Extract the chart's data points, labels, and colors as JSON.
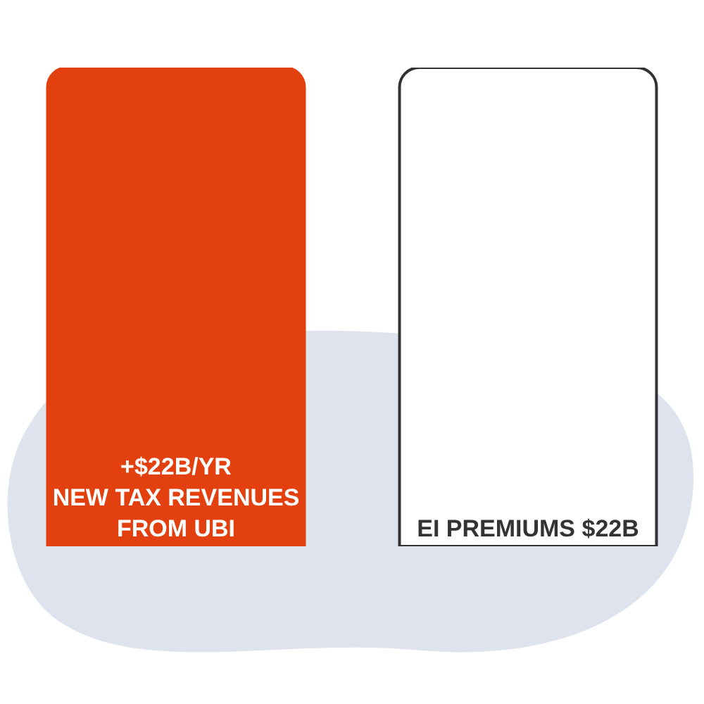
{
  "chart_data": {
    "type": "bar",
    "categories": [
      null,
      null
    ],
    "values": [
      22,
      22
    ],
    "colors": [
      "#e2400f",
      "#ffffff"
    ],
    "value_labels": [
      "+$22B/YR\nNEW TAX REVENUES\nFROM UBI",
      "EI PREMIUMS $22B"
    ],
    "grid": false
  }
}
